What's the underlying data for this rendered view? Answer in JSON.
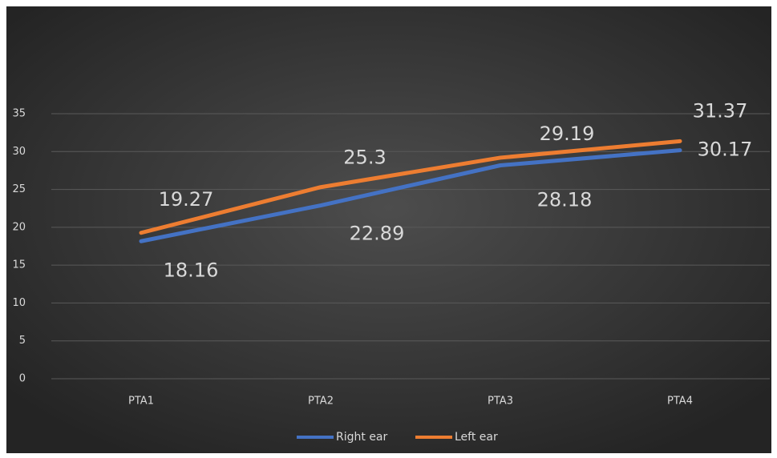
{
  "chart_data": {
    "type": "line",
    "categories": [
      "PTA1",
      "PTA2",
      "PTA3",
      "PTA4"
    ],
    "series": [
      {
        "name": "Right ear",
        "color": "#4472c4",
        "values": [
          18.16,
          22.89,
          28.18,
          30.17
        ]
      },
      {
        "name": "Left ear",
        "color": "#ed7d31",
        "values": [
          19.27,
          25.3,
          29.19,
          31.37
        ]
      }
    ],
    "ylim": [
      0,
      35
    ],
    "yticks": [
      0,
      5,
      10,
      15,
      20,
      25,
      30,
      35
    ],
    "grid": true,
    "legend": "bottom"
  }
}
